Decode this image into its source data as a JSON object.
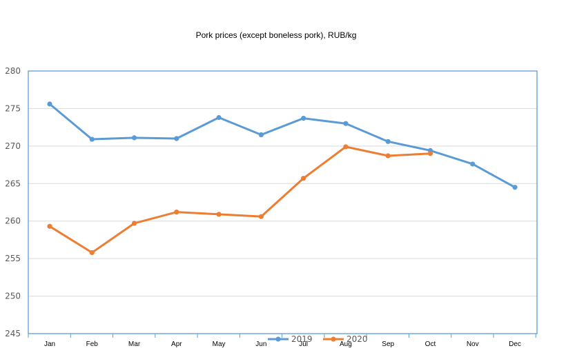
{
  "chart_data": {
    "type": "line",
    "title": "Pork prices (except boneless pork), RUB/kg",
    "categories": [
      "Jan",
      "Feb",
      "Mar",
      "Apr",
      "May",
      "Jun",
      "Jul",
      "Aug",
      "Sep",
      "Oct",
      "Nov",
      "Dec"
    ],
    "ylim": [
      245,
      280
    ],
    "yticks": [
      "245",
      "250",
      "255",
      "260",
      "265",
      "270",
      "275",
      "280"
    ],
    "grid": true,
    "legend_position": "bottom",
    "series": [
      {
        "name": "2019",
        "color": "#5b9bd5",
        "values": [
          275.6,
          270.9,
          271.1,
          271.0,
          273.8,
          271.5,
          273.7,
          273.0,
          270.6,
          269.4,
          267.6,
          264.5
        ]
      },
      {
        "name": "2020",
        "color": "#ed7d31",
        "values": [
          259.3,
          255.8,
          259.7,
          261.2,
          260.9,
          260.6,
          265.7,
          269.9,
          268.7,
          269.0,
          null,
          null
        ]
      }
    ]
  }
}
